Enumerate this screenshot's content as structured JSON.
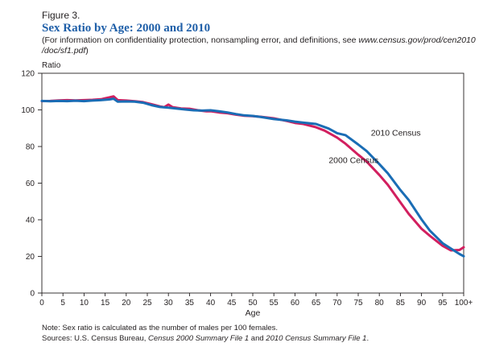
{
  "figure_label": "Figure 3.",
  "title": "Sex Ratio by Age: 2000 and 2010",
  "subtitle_text": "(For information on confidentiality protection, nonsampling error, and definitions, see ",
  "subtitle_url": "www.census.gov/prod/cen2010 /doc/sf1.pdf",
  "subtitle_close": ")",
  "note_text": "Note: Sex ratio is calculated as the number of males per 100 females.",
  "sources_prefix": "Sources: U.S. Census Bureau, ",
  "sources_src1": "Census 2000 Summary File 1",
  "sources_and": " and ",
  "sources_src2": "2010 Census Summary File 1",
  "sources_end": ".",
  "chart_data": {
    "type": "line",
    "title": "Sex Ratio by Age: 2000 and 2010",
    "xlabel": "Age",
    "ylabel": "Ratio",
    "x_tick_labels": [
      "0",
      "5",
      "10",
      "15",
      "20",
      "25",
      "30",
      "35",
      "40",
      "45",
      "50",
      "55",
      "60",
      "65",
      "70",
      "75",
      "80",
      "85",
      "90",
      "95",
      "100+"
    ],
    "y_ticks": [
      0,
      20,
      40,
      60,
      80,
      100,
      120
    ],
    "xlim": [
      0,
      100
    ],
    "ylim": [
      0,
      120
    ],
    "grid": false,
    "series": [
      {
        "name": "2000 Census",
        "color": "#d21f5f",
        "x": [
          0,
          2,
          4,
          6,
          8,
          10,
          12,
          14,
          16,
          17,
          18,
          20,
          22,
          24,
          26,
          28,
          29,
          30,
          31,
          33,
          35,
          37,
          39,
          40,
          42,
          44,
          46,
          48,
          50,
          52,
          55,
          58,
          60,
          62,
          65,
          67,
          70,
          72,
          75,
          77,
          80,
          82,
          85,
          87,
          90,
          92,
          95,
          97,
          99,
          100
        ],
        "y": [
          104.8,
          104.9,
          105.2,
          105.3,
          105.2,
          105.3,
          105.5,
          105.8,
          106.8,
          107.4,
          105.3,
          105.1,
          104.7,
          104.2,
          103.1,
          101.9,
          101.5,
          102.9,
          101.5,
          100.8,
          100.6,
          99.8,
          99.2,
          99.3,
          98.6,
          98.2,
          97.4,
          96.8,
          96.6,
          96.2,
          95.4,
          94.0,
          92.9,
          92.3,
          90.5,
          88.7,
          84.9,
          81.5,
          75.5,
          71.8,
          64.5,
          59.1,
          49.5,
          43.1,
          35.1,
          31.2,
          25.8,
          23.3,
          23.5,
          25.0
        ]
      },
      {
        "name": "2010 Census",
        "color": "#1a6db5",
        "x": [
          0,
          2,
          4,
          6,
          8,
          10,
          12,
          14,
          16,
          17,
          18,
          20,
          22,
          24,
          26,
          28,
          30,
          32,
          34,
          36,
          38,
          40,
          42,
          44,
          46,
          48,
          50,
          52,
          55,
          58,
          60,
          62,
          65,
          68,
          70,
          72,
          75,
          77,
          80,
          82,
          85,
          87,
          90,
          92,
          95,
          97,
          99,
          100
        ],
        "y": [
          104.9,
          104.7,
          104.9,
          104.8,
          105.0,
          104.8,
          105.1,
          105.3,
          105.7,
          106.1,
          104.5,
          104.6,
          104.5,
          103.9,
          102.6,
          101.6,
          101.2,
          100.7,
          100.2,
          99.8,
          99.6,
          99.8,
          99.2,
          98.6,
          97.7,
          97.0,
          96.7,
          96.1,
          95.0,
          94.3,
          93.6,
          93.0,
          92.3,
          89.8,
          87.3,
          86.2,
          81.1,
          77.5,
          70.4,
          65.4,
          56.2,
          50.7,
          40.2,
          34.0,
          27.2,
          24.2,
          21.3,
          20.1
        ]
      }
    ],
    "annotations": [
      {
        "text": "2010 Census",
        "series": "2010 Census",
        "at_x": 78,
        "at_y": 86
      },
      {
        "text": "2000 Census",
        "series": "2000 Census",
        "at_x": 68,
        "at_y": 71
      }
    ]
  }
}
